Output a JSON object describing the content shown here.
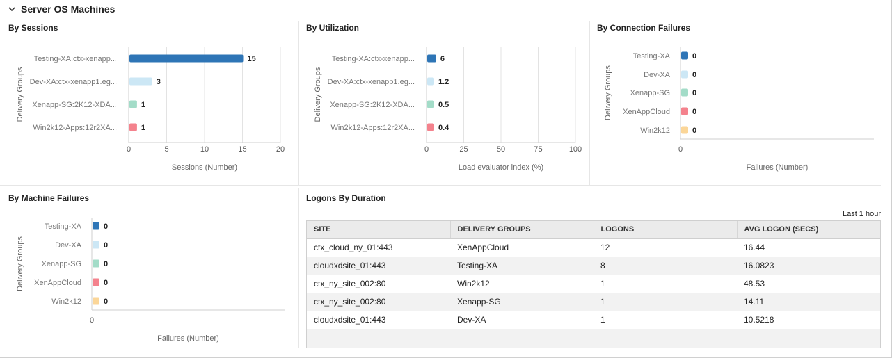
{
  "section": {
    "title": "Server OS Machines",
    "icon": "chevron-down-icon"
  },
  "colors": {
    "blue": "#2e75b6",
    "light_blue": "#cce7f5",
    "teal": "#a3dcc8",
    "red": "#f4828d",
    "yellow": "#fbd698"
  },
  "panels": {
    "sessions": {
      "title": "By Sessions"
    },
    "utilization": {
      "title": "By Utilization"
    },
    "connection_failures": {
      "title": "By Connection Failures"
    },
    "machine_failures": {
      "title": "By Machine Failures"
    },
    "logons": {
      "title": "Logons By Duration",
      "range": "Last 1 hour"
    }
  },
  "chart_data": [
    {
      "id": "sessions",
      "type": "bar",
      "orientation": "horizontal",
      "categories": [
        "Testing-XA:ctx-xenapp...",
        "Dev-XA:ctx-xenapp1.eg...",
        "Xenapp-SG:2K12-XDA...",
        "Win2k12-Apps:12r2XA..."
      ],
      "values": [
        15,
        3,
        1,
        1
      ],
      "value_labels": [
        "15",
        "3",
        "1",
        "1"
      ],
      "bar_colors": [
        "#2e75b6",
        "#cce7f5",
        "#a3dcc8",
        "#f4828d"
      ],
      "xticks": [
        "0",
        "5",
        "10",
        "15",
        "20"
      ],
      "xlim": [
        0,
        20
      ],
      "xlabel": "Sessions (Number)",
      "ylabel": "Delivery Groups",
      "grid": true
    },
    {
      "id": "utilization",
      "type": "bar",
      "orientation": "horizontal",
      "categories": [
        "Testing-XA:ctx-xenapp...",
        "Dev-XA:ctx-xenapp1.eg...",
        "Xenapp-SG:2K12-XDA...",
        "Win2k12-Apps:12r2XA..."
      ],
      "values": [
        6,
        1.2,
        0.5,
        0.4
      ],
      "value_labels": [
        "6",
        "1.2",
        "0.5",
        "0.4"
      ],
      "bar_colors": [
        "#2e75b6",
        "#cce7f5",
        "#a3dcc8",
        "#f4828d"
      ],
      "xticks": [
        "0",
        "25",
        "50",
        "75",
        "100"
      ],
      "xlim": [
        0,
        100
      ],
      "xlabel": "Load evaluator index (%)",
      "ylabel": "Delivery Groups",
      "grid": true
    },
    {
      "id": "connection_failures",
      "type": "bar",
      "orientation": "horizontal",
      "categories": [
        "Testing-XA",
        "Dev-XA",
        "Xenapp-SG",
        "XenAppCloud",
        "Win2k12"
      ],
      "values": [
        0,
        0,
        0,
        0,
        0
      ],
      "value_labels": [
        "0",
        "0",
        "0",
        "0",
        "0"
      ],
      "bar_colors": [
        "#2e75b6",
        "#cce7f5",
        "#a3dcc8",
        "#f4828d",
        "#fbd698"
      ],
      "xticks": [
        "0"
      ],
      "xlim": [
        0,
        1
      ],
      "xlabel": "Failures (Number)",
      "ylabel": "Delivery Groups",
      "grid": false
    },
    {
      "id": "machine_failures",
      "type": "bar",
      "orientation": "horizontal",
      "categories": [
        "Testing-XA",
        "Dev-XA",
        "Xenapp-SG",
        "XenAppCloud",
        "Win2k12"
      ],
      "values": [
        0,
        0,
        0,
        0,
        0
      ],
      "value_labels": [
        "0",
        "0",
        "0",
        "0",
        "0"
      ],
      "bar_colors": [
        "#2e75b6",
        "#cce7f5",
        "#a3dcc8",
        "#f4828d",
        "#fbd698"
      ],
      "xticks": [
        "0"
      ],
      "xlim": [
        0,
        1
      ],
      "xlabel": "Failures (Number)",
      "ylabel": "Delivery Groups",
      "grid": false
    }
  ],
  "logons_table": {
    "columns": [
      "SITE",
      "DELIVERY GROUPS",
      "LOGONS",
      "AVG LOGON (SECS)"
    ],
    "rows": [
      [
        "ctx_cloud_ny_01:443",
        "XenAppCloud",
        "12",
        "16.44"
      ],
      [
        "cloudxdsite_01:443",
        "Testing-XA",
        "8",
        "16.0823"
      ],
      [
        "ctx_ny_site_002:80",
        "Win2k12",
        "1",
        "48.53"
      ],
      [
        "ctx_ny_site_002:80",
        "Xenapp-SG",
        "1",
        "14.11"
      ],
      [
        "cloudxdsite_01:443",
        "Dev-XA",
        "1",
        "10.5218"
      ]
    ]
  }
}
